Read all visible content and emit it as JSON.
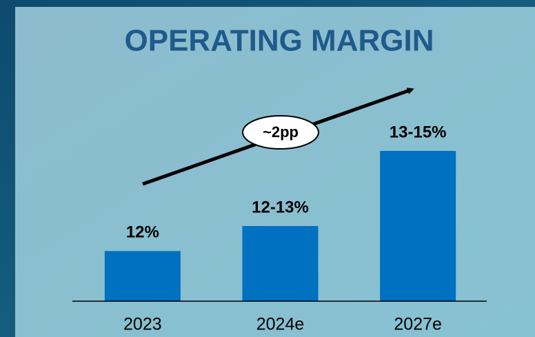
{
  "chart_data": {
    "type": "bar",
    "title": "OPERATING MARGIN",
    "annotation": "~2pp",
    "categories": [
      "2023",
      "2024e",
      "2027e"
    ],
    "values": [
      12,
      12.5,
      14
    ],
    "value_labels": [
      "12%",
      "12-13%",
      "13-15%"
    ],
    "color": "#0070c0",
    "ylim": [
      11,
      15
    ]
  }
}
